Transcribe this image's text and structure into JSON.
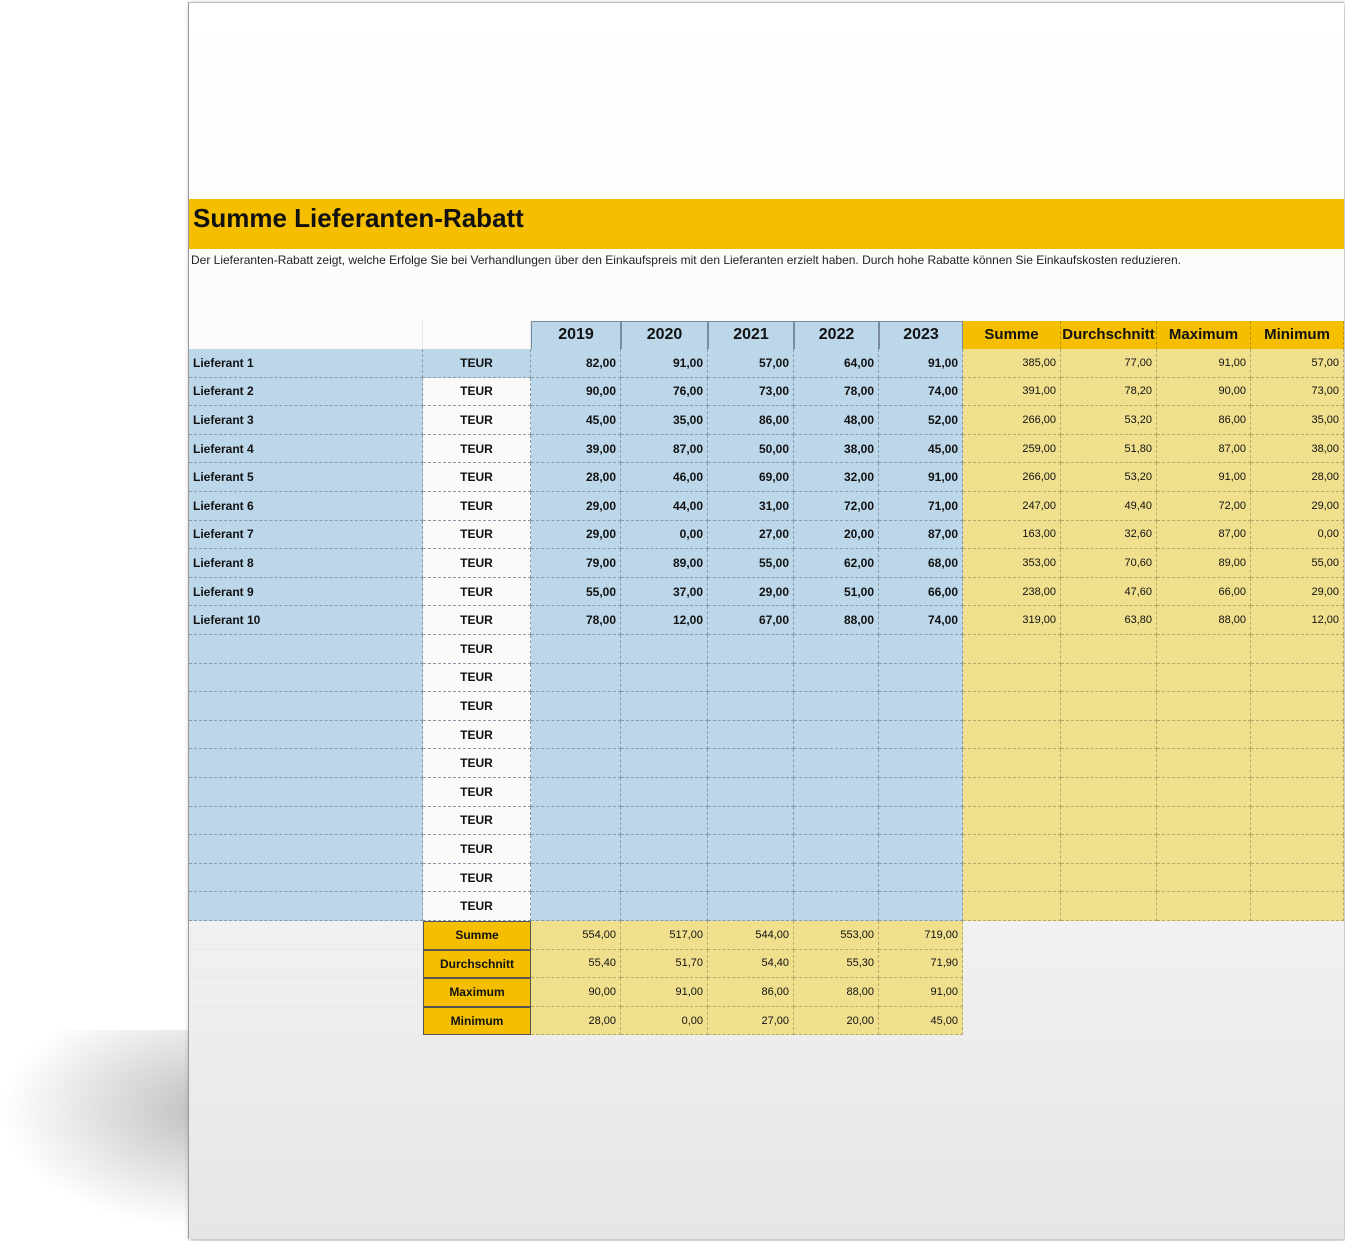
{
  "title": "Summe Lieferanten-Rabatt",
  "description": "Der Lieferanten-Rabatt zeigt, welche Erfolge Sie bei Verhandlungen über den Einkaufspreis mit den Lieferanten erzielt haben. Durch hohe Rabatte können Sie Einkaufskosten reduzieren.",
  "colors": {
    "accent": "#f5bf00",
    "blue_fill": "#bdd7ea",
    "yellow_fill": "#f0e08e"
  },
  "table": {
    "year_headers": [
      "2019",
      "2020",
      "2021",
      "2022",
      "2023"
    ],
    "stat_headers": [
      "Summe",
      "Durchschnitt",
      "Maximum",
      "Minimum"
    ],
    "rows": [
      {
        "name": "Lieferant 1",
        "unit": "TEUR",
        "years": [
          "82,00",
          "91,00",
          "57,00",
          "64,00",
          "91,00"
        ],
        "stats": [
          "385,00",
          "77,00",
          "91,00",
          "57,00"
        ]
      },
      {
        "name": "Lieferant 2",
        "unit": "TEUR",
        "years": [
          "90,00",
          "76,00",
          "73,00",
          "78,00",
          "74,00"
        ],
        "stats": [
          "391,00",
          "78,20",
          "90,00",
          "73,00"
        ]
      },
      {
        "name": "Lieferant 3",
        "unit": "TEUR",
        "years": [
          "45,00",
          "35,00",
          "86,00",
          "48,00",
          "52,00"
        ],
        "stats": [
          "266,00",
          "53,20",
          "86,00",
          "35,00"
        ]
      },
      {
        "name": "Lieferant 4",
        "unit": "TEUR",
        "years": [
          "39,00",
          "87,00",
          "50,00",
          "38,00",
          "45,00"
        ],
        "stats": [
          "259,00",
          "51,80",
          "87,00",
          "38,00"
        ]
      },
      {
        "name": "Lieferant 5",
        "unit": "TEUR",
        "years": [
          "28,00",
          "46,00",
          "69,00",
          "32,00",
          "91,00"
        ],
        "stats": [
          "266,00",
          "53,20",
          "91,00",
          "28,00"
        ]
      },
      {
        "name": "Lieferant 6",
        "unit": "TEUR",
        "years": [
          "29,00",
          "44,00",
          "31,00",
          "72,00",
          "71,00"
        ],
        "stats": [
          "247,00",
          "49,40",
          "72,00",
          "29,00"
        ]
      },
      {
        "name": "Lieferant 7",
        "unit": "TEUR",
        "years": [
          "29,00",
          "0,00",
          "27,00",
          "20,00",
          "87,00"
        ],
        "stats": [
          "163,00",
          "32,60",
          "87,00",
          "0,00"
        ]
      },
      {
        "name": "Lieferant 8",
        "unit": "TEUR",
        "years": [
          "79,00",
          "89,00",
          "55,00",
          "62,00",
          "68,00"
        ],
        "stats": [
          "353,00",
          "70,60",
          "89,00",
          "55,00"
        ]
      },
      {
        "name": "Lieferant 9",
        "unit": "TEUR",
        "years": [
          "55,00",
          "37,00",
          "29,00",
          "51,00",
          "66,00"
        ],
        "stats": [
          "238,00",
          "47,60",
          "66,00",
          "29,00"
        ]
      },
      {
        "name": "Lieferant 10",
        "unit": "TEUR",
        "years": [
          "78,00",
          "12,00",
          "67,00",
          "88,00",
          "74,00"
        ],
        "stats": [
          "319,00",
          "63,80",
          "88,00",
          "12,00"
        ]
      },
      {
        "name": "",
        "unit": "TEUR",
        "years": [
          "",
          "",
          "",
          "",
          ""
        ],
        "stats": [
          "",
          "",
          "",
          ""
        ]
      },
      {
        "name": "",
        "unit": "TEUR",
        "years": [
          "",
          "",
          "",
          "",
          ""
        ],
        "stats": [
          "",
          "",
          "",
          ""
        ]
      },
      {
        "name": "",
        "unit": "TEUR",
        "years": [
          "",
          "",
          "",
          "",
          ""
        ],
        "stats": [
          "",
          "",
          "",
          ""
        ]
      },
      {
        "name": "",
        "unit": "TEUR",
        "years": [
          "",
          "",
          "",
          "",
          ""
        ],
        "stats": [
          "",
          "",
          "",
          ""
        ]
      },
      {
        "name": "",
        "unit": "TEUR",
        "years": [
          "",
          "",
          "",
          "",
          ""
        ],
        "stats": [
          "",
          "",
          "",
          ""
        ]
      },
      {
        "name": "",
        "unit": "TEUR",
        "years": [
          "",
          "",
          "",
          "",
          ""
        ],
        "stats": [
          "",
          "",
          "",
          ""
        ]
      },
      {
        "name": "",
        "unit": "TEUR",
        "years": [
          "",
          "",
          "",
          "",
          ""
        ],
        "stats": [
          "",
          "",
          "",
          ""
        ]
      },
      {
        "name": "",
        "unit": "TEUR",
        "years": [
          "",
          "",
          "",
          "",
          ""
        ],
        "stats": [
          "",
          "",
          "",
          ""
        ]
      },
      {
        "name": "",
        "unit": "TEUR",
        "years": [
          "",
          "",
          "",
          "",
          ""
        ],
        "stats": [
          "",
          "",
          "",
          ""
        ]
      },
      {
        "name": "",
        "unit": "TEUR",
        "years": [
          "",
          "",
          "",
          "",
          ""
        ],
        "stats": [
          "",
          "",
          "",
          ""
        ]
      }
    ],
    "summary": [
      {
        "label": "Summe",
        "values": [
          "554,00",
          "517,00",
          "544,00",
          "553,00",
          "719,00"
        ]
      },
      {
        "label": "Durchschnitt",
        "values": [
          "55,40",
          "51,70",
          "54,40",
          "55,30",
          "71,90"
        ]
      },
      {
        "label": "Maximum",
        "values": [
          "90,00",
          "91,00",
          "86,00",
          "88,00",
          "91,00"
        ]
      },
      {
        "label": "Minimum",
        "values": [
          "28,00",
          "0,00",
          "27,00",
          "20,00",
          "45,00"
        ]
      }
    ]
  }
}
